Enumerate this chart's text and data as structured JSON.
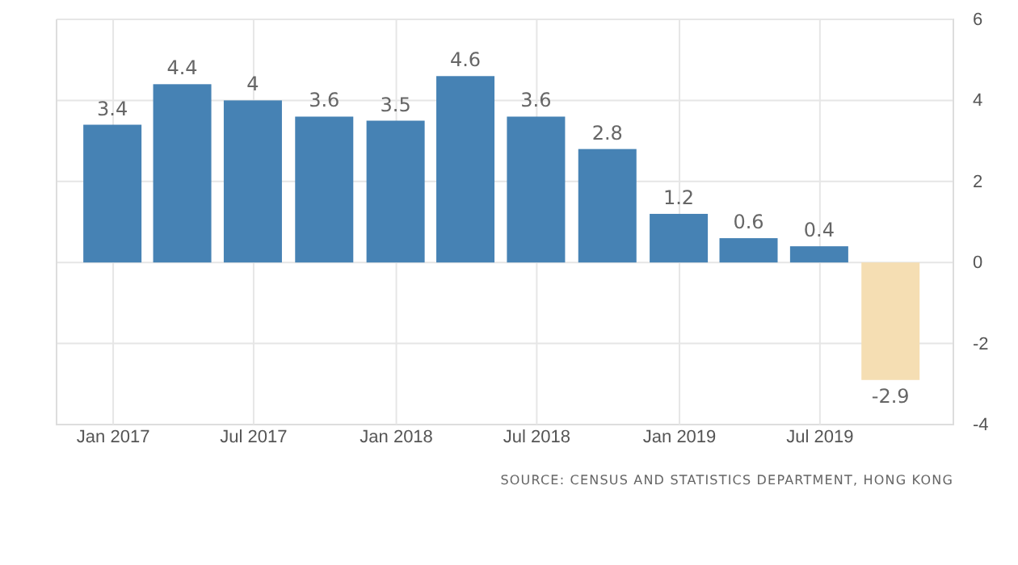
{
  "chart_data": {
    "type": "bar",
    "x": [
      "2016-12-31",
      "2017-03-31",
      "2017-06-30",
      "2017-09-30",
      "2017-12-31",
      "2018-03-31",
      "2018-06-30",
      "2018-09-30",
      "2018-12-31",
      "2019-03-31",
      "2019-06-30",
      "2019-09-30"
    ],
    "values": [
      3.4,
      4.4,
      4,
      3.6,
      3.5,
      4.6,
      3.6,
      2.8,
      1.2,
      0.6,
      0.4,
      -2.9
    ],
    "colors": [
      "#4682b4",
      "#4682b4",
      "#4682b4",
      "#4682b4",
      "#4682b4",
      "#4682b4",
      "#4682b4",
      "#4682b4",
      "#4682b4",
      "#4682b4",
      "#4682b4",
      "#f5deb3"
    ],
    "data_labels": true,
    "xlim": [
      "2016-10-20",
      "2019-12-20"
    ],
    "xticks": [
      {
        "value": "2017-01-01",
        "label": "Jan 2017"
      },
      {
        "value": "2017-07-01",
        "label": "Jul 2017"
      },
      {
        "value": "2018-01-01",
        "label": "Jan 2018"
      },
      {
        "value": "2018-07-01",
        "label": "Jul 2018"
      },
      {
        "value": "2019-01-01",
        "label": "Jan 2019"
      },
      {
        "value": "2019-07-01",
        "label": "Jul 2019"
      }
    ],
    "ylim": [
      -4,
      6
    ],
    "yticks": [
      -4,
      -2,
      0,
      2,
      4,
      6
    ],
    "grid": true,
    "annotations": [
      "SOURCE: CENSUS AND STATISTICS DEPARTMENT, HONG KONG"
    ]
  }
}
